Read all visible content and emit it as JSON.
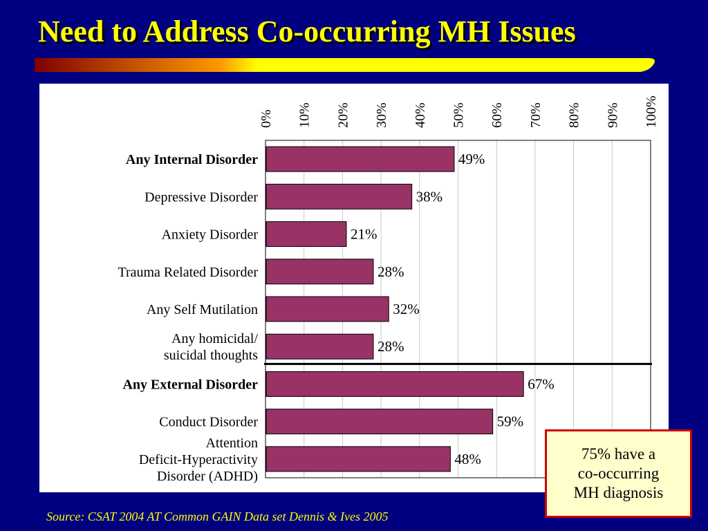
{
  "slide": {
    "title": "Need to Address Co-occurring MH Issues",
    "callout": "75% have a\nco-occurring\nMH diagnosis",
    "source": "Source:  CSAT 2004 AT Common GAIN Data set Dennis & Ives 2005"
  },
  "colors": {
    "background": "#000080",
    "title": "#ffff00",
    "bar": "#993366",
    "callout_bg": "#ffffcc",
    "callout_border": "#cc0000",
    "title_bar_start": "#800000",
    "title_bar_mid": "#ff9900",
    "title_bar_end": "#ffff00"
  },
  "chart_data": {
    "type": "bar",
    "orientation": "horizontal",
    "title": "",
    "xlabel": "",
    "ylabel": "",
    "xlim": [
      0,
      100
    ],
    "x_axis_position": "top",
    "x_ticks": [
      "0%",
      "10%",
      "20%",
      "30%",
      "40%",
      "50%",
      "60%",
      "70%",
      "80%",
      "90%",
      "100%"
    ],
    "grid": true,
    "legend": "none",
    "categories": [
      "Any Internal Disorder",
      "Depressive Disorder",
      "Anxiety Disorder",
      "Trauma Related Disorder",
      "Any Self Mutilation",
      "Any homicidal/\nsuicidal thoughts",
      "Any External Disorder",
      "Conduct Disorder",
      "Attention\nDeficit-Hyperactivity\nDisorder (ADHD)"
    ],
    "bold_categories": [
      0,
      6
    ],
    "values": [
      49,
      38,
      21,
      28,
      32,
      28,
      67,
      59,
      48
    ],
    "value_labels": [
      "49%",
      "38%",
      "21%",
      "28%",
      "32%",
      "28%",
      "67%",
      "59%",
      "48%"
    ]
  }
}
